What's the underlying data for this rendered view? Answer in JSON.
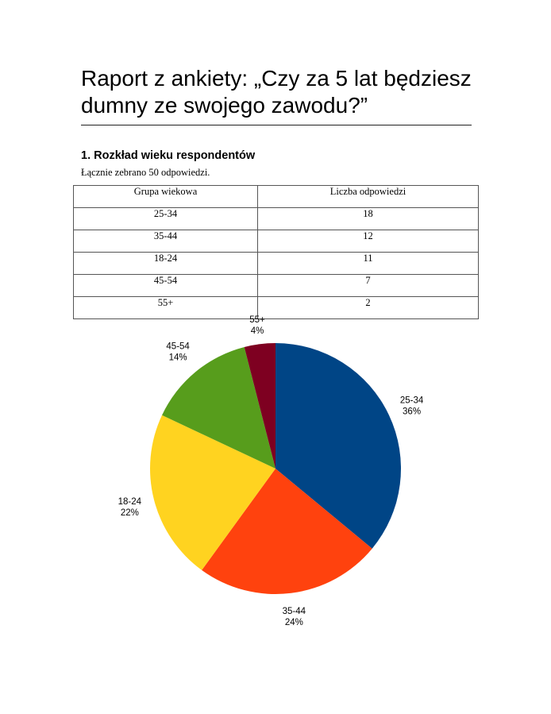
{
  "report": {
    "title": "Raport z ankiety: „Czy za 5 lat będziesz dumny ze swojego zawodu?”",
    "section_heading": "1. Rozkład wieku respondentów",
    "section_note": "Łącznie zebrano 50 odpowiedzi."
  },
  "table": {
    "headers": [
      "Grupa wiekowa",
      "Liczba odpowiedzi"
    ],
    "rows": [
      [
        "25-34",
        "18"
      ],
      [
        "35-44",
        "12"
      ],
      [
        "18-24",
        "11"
      ],
      [
        "45-54",
        "7"
      ],
      [
        "55+",
        "2"
      ]
    ]
  },
  "chart_data": {
    "type": "pie",
    "categories": [
      "25-34",
      "35-44",
      "18-24",
      "45-54",
      "55+"
    ],
    "values": [
      18,
      12,
      11,
      7,
      2
    ],
    "percent_labels": [
      "36%",
      "24%",
      "22%",
      "14%",
      "4%"
    ],
    "colors": [
      "#004586",
      "#ff420e",
      "#ffd320",
      "#579d1c",
      "#7e0021"
    ],
    "start": "12 o'clock, clockwise"
  }
}
